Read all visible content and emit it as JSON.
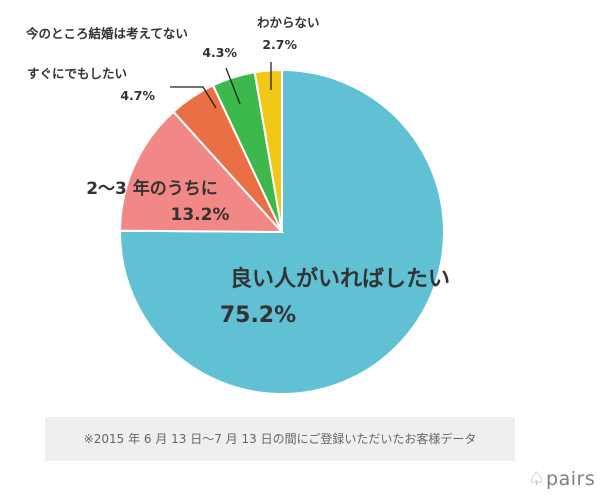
{
  "chart_data": {
    "type": "pie",
    "start_angle_deg": 0,
    "direction": "clockwise",
    "slices": [
      {
        "label": "良い人がいればしたい",
        "value": 75.2,
        "value_label": "75.2%",
        "color": "#5fc1d3"
      },
      {
        "label": "2～3 年のうちに",
        "value": 13.2,
        "value_label": "13.2%",
        "color": "#f18886"
      },
      {
        "label": "すぐにでもしたい",
        "value": 4.7,
        "value_label": "4.7%",
        "color": "#ea6f45"
      },
      {
        "label": "今のところ結婚は考えてない",
        "value": 4.3,
        "value_label": "4.3%",
        "color": "#3db84d"
      },
      {
        "label": "わからない",
        "value": 2.7,
        "value_label": "2.7%",
        "color": "#f2c818"
      }
    ]
  },
  "footnote": "※2015 年 6 月 13 日～7 月 13 日の間にご登録いただいたお客様データ",
  "logo": {
    "mark": "♤",
    "text": "pairs"
  }
}
